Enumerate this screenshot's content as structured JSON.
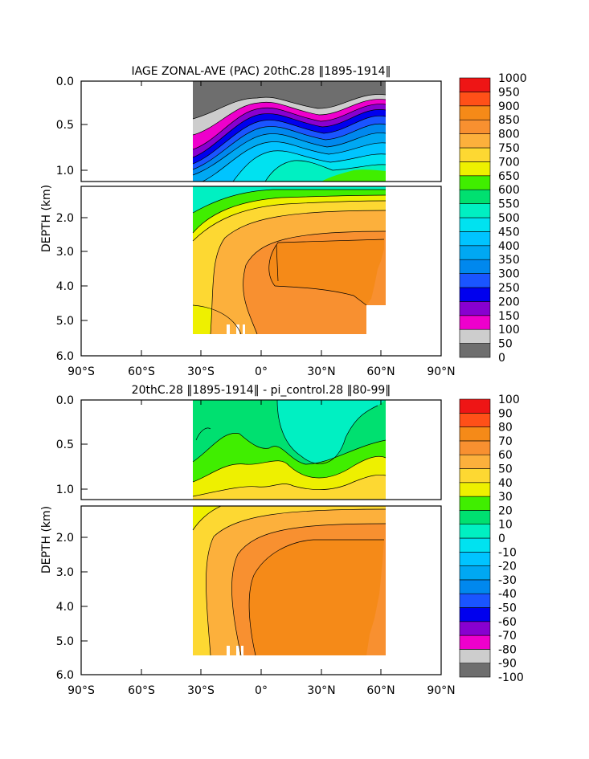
{
  "chart_data": [
    {
      "type": "heatmap",
      "title": "IAGE ZONAL-AVE (PAC) 20thC.28 ⟦1895-1914⟧",
      "title_display": "IAGE ZONAL-AVE (PAC) 20thC.28 ‖1895-1914‖",
      "xlabel": "",
      "ylabel": "DEPTH (km)",
      "xlim": [
        -90,
        90
      ],
      "ylim": [
        6.0,
        0.0
      ],
      "upper_panel_ylim": [
        1.15,
        0.0
      ],
      "lower_panel_ylim": [
        6.0,
        1.15
      ],
      "x_ticks": [
        "90°S",
        "60°S",
        "30°S",
        "0°",
        "30°N",
        "60°N",
        "90°N"
      ],
      "y_ticks_upper": [
        "0.0",
        "0.5",
        "1.0"
      ],
      "y_ticks_lower": [
        "2.0",
        "3.0",
        "4.0",
        "5.0",
        "6.0"
      ],
      "colorbar_levels": [
        "0",
        "50",
        "100",
        "150",
        "200",
        "250",
        "300",
        "350",
        "400",
        "450",
        "500",
        "550",
        "600",
        "650",
        "700",
        "750",
        "800",
        "850",
        "900",
        "950",
        "1000"
      ],
      "colorbar_colors": [
        "#6e6e6e",
        "#cdcdcd",
        "#ee00cc",
        "#8800d0",
        "#0000ee",
        "#1a55ff",
        "#0088ee",
        "#00a8f2",
        "#00c4ff",
        "#00e2f0",
        "#00f0c2",
        "#00e070",
        "#40ee00",
        "#eef000",
        "#fdd832",
        "#fcb03c",
        "#f89030",
        "#f58a18",
        "#ff5018",
        "#ee1515"
      ],
      "data_extent_lat": [
        -35,
        62
      ],
      "water_mass": {
        "deep_core_max": 800,
        "surface_min": 0
      }
    },
    {
      "type": "heatmap",
      "title": "20thC.28 ‖1895-1914‖ - pi_control.28 ‖80-99‖",
      "xlabel": "",
      "ylabel": "DEPTH (km)",
      "xlim": [
        -90,
        90
      ],
      "ylim": [
        6.0,
        0.0
      ],
      "upper_panel_ylim": [
        1.15,
        0.0
      ],
      "lower_panel_ylim": [
        6.0,
        1.15
      ],
      "x_ticks": [
        "90°S",
        "60°S",
        "30°S",
        "0°",
        "30°N",
        "60°N",
        "90°N"
      ],
      "y_ticks_upper": [
        "0.0",
        "0.5",
        "1.0"
      ],
      "y_ticks_lower": [
        "2.0",
        "3.0",
        "4.0",
        "5.0",
        "6.0"
      ],
      "colorbar_levels": [
        "-100",
        "-90",
        "-80",
        "-70",
        "-60",
        "-50",
        "-40",
        "-30",
        "-20",
        "-10",
        "0",
        "10",
        "20",
        "30",
        "40",
        "50",
        "60",
        "70",
        "80",
        "90",
        "100"
      ],
      "colorbar_colors": [
        "#6e6e6e",
        "#cdcdcd",
        "#ee00cc",
        "#8800d0",
        "#0000ee",
        "#1a55ff",
        "#0088ee",
        "#00a8f2",
        "#00c4ff",
        "#00e2f0",
        "#00f0c2",
        "#00e070",
        "#40ee00",
        "#eef000",
        "#fdd832",
        "#fcb03c",
        "#f89030",
        "#f58a18",
        "#ff5018",
        "#ee1515"
      ],
      "data_extent_lat": [
        -35,
        62
      ],
      "water_mass": {
        "deep_core_max": 70,
        "surface_min": -20
      }
    }
  ]
}
